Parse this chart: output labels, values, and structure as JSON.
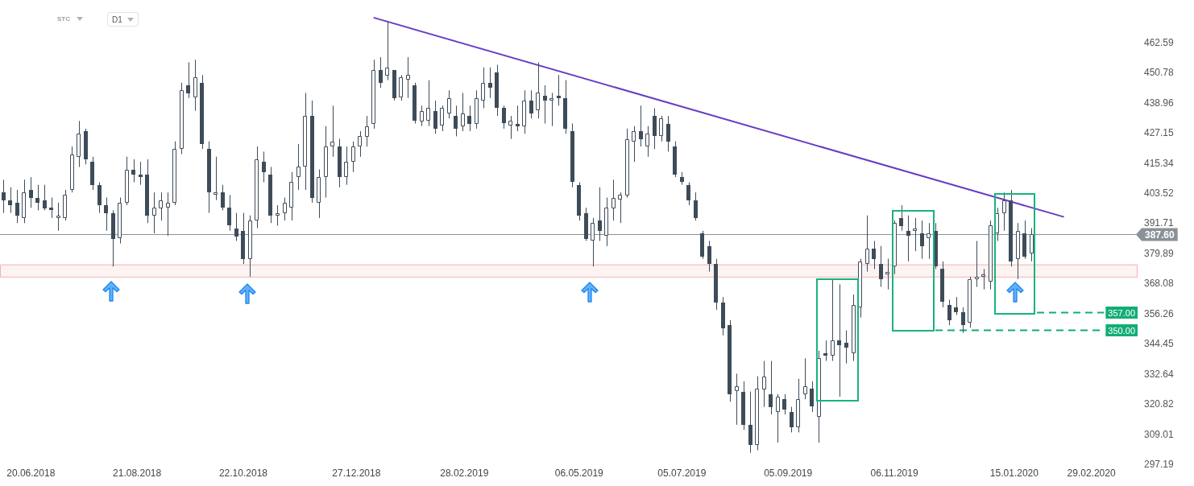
{
  "chart_data": {
    "type": "candlestick",
    "color": "#3e4c59",
    "x": [
      "2018-06-04",
      "2018-06-08",
      "2018-06-12",
      "2018-06-16",
      "2018-06-20",
      "2018-06-24",
      "2018-06-28",
      "2018-07-02",
      "2018-07-06",
      "2018-07-10",
      "2018-07-14",
      "2018-07-18",
      "2018-07-22",
      "2018-07-26",
      "2018-07-30",
      "2018-08-03",
      "2018-08-07",
      "2018-08-11",
      "2018-08-15",
      "2018-08-19",
      "2018-08-23",
      "2018-08-27",
      "2018-08-31",
      "2018-09-04",
      "2018-09-08",
      "2018-09-12",
      "2018-09-16",
      "2018-09-20",
      "2018-09-24",
      "2018-09-28",
      "2018-10-02",
      "2018-10-06",
      "2018-10-10",
      "2018-10-14",
      "2018-10-18",
      "2018-10-22",
      "2018-10-26",
      "2018-10-30",
      "2018-11-03",
      "2018-11-07",
      "2018-11-11",
      "2018-11-15",
      "2018-11-19",
      "2018-11-23",
      "2018-11-27",
      "2018-12-01",
      "2018-12-05",
      "2018-12-09",
      "2018-12-13",
      "2018-12-17",
      "2018-12-21",
      "2018-12-25",
      "2018-12-29",
      "2019-01-02",
      "2019-01-06",
      "2019-01-10",
      "2019-01-14",
      "2019-01-18",
      "2019-01-22",
      "2019-01-26",
      "2019-01-30",
      "2019-02-03",
      "2019-02-07",
      "2019-02-11",
      "2019-02-15",
      "2019-02-19",
      "2019-02-23",
      "2019-02-27",
      "2019-03-03",
      "2019-03-07",
      "2019-03-11",
      "2019-03-15",
      "2019-03-19",
      "2019-03-23",
      "2019-03-27",
      "2019-03-31",
      "2019-04-04",
      "2019-04-08",
      "2019-04-12",
      "2019-04-16",
      "2019-04-20",
      "2019-04-24",
      "2019-04-28",
      "2019-05-02",
      "2019-05-06",
      "2019-05-10",
      "2019-05-14",
      "2019-05-18",
      "2019-05-22",
      "2019-05-26",
      "2019-05-30",
      "2019-06-03",
      "2019-06-07",
      "2019-06-11",
      "2019-06-15",
      "2019-06-19",
      "2019-06-23",
      "2019-06-27",
      "2019-07-01",
      "2019-07-05",
      "2019-07-09",
      "2019-07-13",
      "2019-07-17",
      "2019-07-21",
      "2019-07-25",
      "2019-07-29",
      "2019-08-02",
      "2019-08-06",
      "2019-08-10",
      "2019-08-14",
      "2019-08-18",
      "2019-08-22",
      "2019-08-26",
      "2019-08-30",
      "2019-09-03",
      "2019-09-07",
      "2019-09-11",
      "2019-09-15",
      "2019-09-19",
      "2019-09-23",
      "2019-09-27",
      "2019-10-01",
      "2019-10-05",
      "2019-10-09",
      "2019-10-13",
      "2019-10-17",
      "2019-10-21",
      "2019-10-25",
      "2019-10-29",
      "2019-11-02",
      "2019-11-06",
      "2019-11-10",
      "2019-11-14",
      "2019-11-18",
      "2019-11-22",
      "2019-11-26",
      "2019-11-30",
      "2019-12-04",
      "2019-12-08",
      "2019-12-12",
      "2019-12-16",
      "2019-12-20",
      "2019-12-24",
      "2019-12-28",
      "2020-01-01",
      "2020-01-05",
      "2020-01-09",
      "2020-01-13",
      "2020-01-17",
      "2020-01-21",
      "2020-01-25"
    ],
    "ohlc": [
      [
        404,
        409,
        396,
        401
      ],
      [
        401,
        406,
        396,
        399
      ],
      [
        400,
        405,
        392,
        395
      ],
      [
        394,
        409,
        392,
        404
      ],
      [
        405,
        410,
        398,
        402
      ],
      [
        402,
        407,
        397,
        400
      ],
      [
        401,
        407,
        397,
        398
      ],
      [
        398,
        402,
        394,
        397
      ],
      [
        394,
        400,
        389,
        395
      ],
      [
        394,
        405,
        393,
        403
      ],
      [
        405,
        422,
        404,
        419
      ],
      [
        418,
        432,
        414,
        427
      ],
      [
        428,
        429,
        415,
        417
      ],
      [
        416,
        418,
        405,
        407
      ],
      [
        407,
        408,
        396,
        399
      ],
      [
        399,
        402,
        389,
        396
      ],
      [
        396,
        397,
        375,
        386
      ],
      [
        386,
        402,
        384,
        400
      ],
      [
        400,
        418,
        399,
        413
      ],
      [
        413,
        417,
        408,
        411
      ],
      [
        411,
        416,
        407,
        410
      ],
      [
        411,
        417,
        392,
        395
      ],
      [
        395,
        404,
        388,
        398
      ],
      [
        398,
        404,
        393,
        401
      ],
      [
        398,
        404,
        387,
        400
      ],
      [
        400,
        424,
        399,
        421
      ],
      [
        421,
        447,
        419,
        444
      ],
      [
        446,
        455,
        441,
        443
      ],
      [
        441,
        456,
        436,
        449
      ],
      [
        447,
        450,
        421,
        423
      ],
      [
        421,
        424,
        396,
        404
      ],
      [
        403,
        418,
        401,
        404
      ],
      [
        404,
        407,
        397,
        398
      ],
      [
        398,
        403,
        389,
        391
      ],
      [
        390,
        396,
        385,
        387
      ],
      [
        389,
        396,
        376,
        378
      ],
      [
        378,
        395,
        371,
        393
      ],
      [
        393,
        422,
        390,
        417
      ],
      [
        416,
        420,
        408,
        412
      ],
      [
        411,
        414,
        392,
        395
      ],
      [
        395,
        399,
        391,
        396
      ],
      [
        396,
        402,
        393,
        400
      ],
      [
        398,
        412,
        393,
        408
      ],
      [
        410,
        423,
        405,
        414
      ],
      [
        414,
        443,
        405,
        434
      ],
      [
        434,
        440,
        400,
        402
      ],
      [
        400,
        413,
        394,
        410
      ],
      [
        410,
        430,
        402,
        422
      ],
      [
        422,
        438,
        418,
        424
      ],
      [
        422,
        425,
        406,
        410
      ],
      [
        410,
        422,
        407,
        416
      ],
      [
        416,
        424,
        412,
        422
      ],
      [
        422,
        428,
        418,
        426
      ],
      [
        426,
        434,
        422,
        430
      ],
      [
        431,
        456,
        429,
        452
      ],
      [
        452,
        457,
        445,
        447
      ],
      [
        450,
        471,
        448,
        453
      ],
      [
        452,
        452,
        440,
        441
      ],
      [
        441,
        450,
        440,
        449
      ],
      [
        448,
        457,
        441,
        450
      ],
      [
        446,
        447,
        431,
        432
      ],
      [
        432,
        438,
        430,
        436
      ],
      [
        432,
        448,
        430,
        437
      ],
      [
        436,
        440,
        427,
        429
      ],
      [
        430,
        438,
        428,
        437
      ],
      [
        435,
        444,
        433,
        441
      ],
      [
        434,
        438,
        426,
        429
      ],
      [
        430,
        443,
        428,
        435
      ],
      [
        434,
        438,
        428,
        431
      ],
      [
        431,
        444,
        429,
        441
      ],
      [
        440,
        453,
        437,
        447
      ],
      [
        447,
        453,
        441,
        445
      ],
      [
        451,
        454,
        434,
        437
      ],
      [
        437,
        438,
        429,
        431
      ],
      [
        430,
        434,
        425,
        432
      ],
      [
        431,
        438,
        428,
        430
      ],
      [
        430,
        444,
        427,
        440
      ],
      [
        440,
        444,
        433,
        435
      ],
      [
        436,
        455,
        433,
        443
      ],
      [
        442,
        446,
        431,
        440
      ],
      [
        440,
        443,
        430,
        441
      ],
      [
        442,
        450,
        438,
        441
      ],
      [
        441,
        448,
        427,
        429
      ],
      [
        428,
        431,
        406,
        408
      ],
      [
        407,
        408,
        393,
        395
      ],
      [
        396,
        398,
        385,
        386
      ],
      [
        385,
        394,
        375,
        392
      ],
      [
        393,
        406,
        385,
        389
      ],
      [
        387,
        402,
        383,
        398
      ],
      [
        398,
        409,
        393,
        402
      ],
      [
        401,
        404,
        392,
        403
      ],
      [
        403,
        429,
        402,
        425
      ],
      [
        424,
        430,
        416,
        428
      ],
      [
        428,
        438,
        422,
        425
      ],
      [
        422,
        430,
        418,
        427
      ],
      [
        434,
        437,
        421,
        426
      ],
      [
        426,
        434,
        424,
        433
      ],
      [
        431,
        434,
        420,
        424
      ],
      [
        422,
        424,
        410,
        411
      ],
      [
        410,
        412,
        407,
        408
      ],
      [
        407,
        408,
        399,
        401
      ],
      [
        401,
        404,
        393,
        394
      ],
      [
        388,
        389,
        378,
        379
      ],
      [
        383,
        385,
        373,
        376
      ],
      [
        376,
        378,
        358,
        361
      ],
      [
        361,
        363,
        348,
        351
      ],
      [
        352,
        354,
        322,
        325
      ],
      [
        326,
        333,
        313,
        328
      ],
      [
        326,
        330,
        311,
        313
      ],
      [
        313,
        326,
        302,
        305
      ],
      [
        305,
        332,
        303,
        327
      ],
      [
        327,
        338,
        320,
        332
      ],
      [
        325,
        338,
        317,
        320
      ],
      [
        318,
        325,
        306,
        324
      ],
      [
        323,
        325,
        317,
        319
      ],
      [
        318,
        320,
        310,
        312
      ],
      [
        312,
        331,
        310,
        323
      ],
      [
        325,
        339,
        323,
        328
      ],
      [
        327,
        330,
        318,
        320
      ],
      [
        316,
        342,
        306,
        339
      ],
      [
        341,
        346,
        338,
        340
      ],
      [
        340,
        370,
        338,
        346
      ],
      [
        346,
        368,
        324,
        344
      ],
      [
        345,
        350,
        337,
        343
      ],
      [
        341,
        364,
        338,
        360
      ],
      [
        359,
        378,
        355,
        377
      ],
      [
        376,
        395,
        373,
        382
      ],
      [
        382,
        385,
        374,
        378
      ],
      [
        376,
        383,
        367,
        370
      ],
      [
        372,
        378,
        366,
        373
      ],
      [
        375,
        393,
        372,
        392
      ],
      [
        394,
        399,
        389,
        391
      ],
      [
        389,
        395,
        377,
        387
      ],
      [
        389,
        394,
        381,
        390
      ],
      [
        388,
        393,
        378,
        383
      ],
      [
        386,
        392,
        378,
        388
      ],
      [
        389,
        392,
        374,
        375
      ],
      [
        374,
        377,
        359,
        361
      ],
      [
        360,
        362,
        352,
        354
      ],
      [
        359,
        363,
        356,
        357
      ],
      [
        357,
        359,
        349,
        352
      ],
      [
        353,
        371,
        351,
        370
      ],
      [
        370,
        385,
        367,
        371
      ],
      [
        371,
        374,
        366,
        372
      ],
      [
        369,
        393,
        366,
        391
      ],
      [
        388,
        398,
        385,
        396
      ],
      [
        396,
        404,
        389,
        401
      ],
      [
        401,
        405,
        375,
        377
      ],
      [
        378,
        392,
        370,
        389
      ],
      [
        388,
        393,
        378,
        379
      ],
      [
        380,
        390,
        377,
        387.6
      ]
    ],
    "colors": [
      "#3e4c59",
      "#3e4c59",
      "#3e4c59",
      "#ffffff",
      "#3e4c59",
      "#3e4c59",
      "#3e4c59",
      "#3e4c59",
      "#ffffff",
      "#ffffff",
      "#ffffff",
      "#ffffff",
      "#3e4c59",
      "#3e4c59",
      "#3e4c59",
      "#3e4c59",
      "#3e4c59",
      "#ffffff",
      "#ffffff",
      "#3e4c59",
      "#3e4c59",
      "#3e4c59",
      "#ffffff",
      "#ffffff",
      "#ffffff",
      "#ffffff",
      "#ffffff",
      "#3e4c59",
      "#ffffff",
      "#3e4c59",
      "#3e4c59",
      "#ffffff",
      "#3e4c59",
      "#3e4c59",
      "#3e4c59",
      "#3e4c59",
      "#ffffff",
      "#ffffff",
      "#3e4c59",
      "#3e4c59",
      "#ffffff",
      "#ffffff",
      "#ffffff",
      "#ffffff",
      "#ffffff",
      "#3e4c59",
      "#ffffff",
      "#ffffff",
      "#ffffff",
      "#3e4c59",
      "#ffffff",
      "#ffffff",
      "#ffffff",
      "#ffffff",
      "#ffffff",
      "#3e4c59",
      "#ffffff",
      "#3e4c59",
      "#ffffff",
      "#ffffff",
      "#3e4c59",
      "#ffffff",
      "#ffffff",
      "#3e4c59",
      "#ffffff",
      "#ffffff",
      "#3e4c59",
      "#ffffff",
      "#3e4c59",
      "#ffffff",
      "#ffffff",
      "#3e4c59",
      "#3e4c59",
      "#3e4c59",
      "#ffffff",
      "#3e4c59",
      "#ffffff",
      "#3e4c59",
      "#ffffff",
      "#3e4c59",
      "#ffffff",
      "#3e4c59",
      "#3e4c59",
      "#3e4c59",
      "#3e4c59",
      "#3e4c59",
      "#ffffff",
      "#3e4c59",
      "#ffffff",
      "#ffffff",
      "#ffffff",
      "#ffffff",
      "#ffffff",
      "#3e4c59",
      "#ffffff",
      "#3e4c59",
      "#ffffff",
      "#3e4c59",
      "#3e4c59",
      "#3e4c59",
      "#3e4c59",
      "#3e4c59",
      "#3e4c59",
      "#3e4c59",
      "#3e4c59",
      "#3e4c59",
      "#3e4c59",
      "#ffffff",
      "#3e4c59",
      "#3e4c59",
      "#ffffff",
      "#ffffff",
      "#3e4c59",
      "#ffffff",
      "#3e4c59",
      "#3e4c59",
      "#ffffff",
      "#ffffff",
      "#3e4c59",
      "#ffffff",
      "#3e4c59",
      "#ffffff",
      "#3e4c59",
      "#3e4c59",
      "#ffffff",
      "#ffffff",
      "#ffffff",
      "#3e4c59",
      "#3e4c59",
      "#ffffff",
      "#ffffff",
      "#3e4c59",
      "#3e4c59",
      "#ffffff",
      "#3e4c59",
      "#ffffff",
      "#3e4c59",
      "#3e4c59",
      "#3e4c59",
      "#3e4c59",
      "#3e4c59",
      "#ffffff",
      "#ffffff",
      "#ffffff",
      "#ffffff",
      "#ffffff",
      "#ffffff",
      "#3e4c59",
      "#ffffff",
      "#3e4c59",
      "#ffffff"
    ],
    "series": [
      {
        "type": "line",
        "x": [
          "2019-01-06",
          "2020-02-13"
        ],
        "values": [
          472.5,
          394.4
        ],
        "color": "#6a3dc4"
      }
    ],
    "xlim": [
      "2018-06-02",
      "2020-03-27"
    ],
    "xticks": [
      {
        "value": "2018-06-20",
        "label": "20.06.2018"
      },
      {
        "value": "2018-08-21",
        "label": "21.08.2018"
      },
      {
        "value": "2018-10-22",
        "label": "22.10.2018"
      },
      {
        "value": "2018-12-27",
        "label": "27.12.2018"
      },
      {
        "value": "2019-02-28",
        "label": "28.02.2019"
      },
      {
        "value": "2019-05-06",
        "label": "06.05.2019"
      },
      {
        "value": "2019-07-05",
        "label": "05.07.2019"
      },
      {
        "value": "2019-09-05",
        "label": "05.09.2019"
      },
      {
        "value": "2019-11-06",
        "label": "06.11.2019"
      },
      {
        "value": "2020-01-15",
        "label": "15.01.2020"
      },
      {
        "value": "2020-02-29",
        "label": "29.02.2020"
      }
    ],
    "ylim": [
      297.19,
      479.4
    ],
    "yticks": [
      297.19,
      309.01,
      320.82,
      332.64,
      344.45,
      356.26,
      368.08,
      379.89,
      391.71,
      403.52,
      415.34,
      427.15,
      438.96,
      450.78,
      462.59
    ],
    "ref_lines": [
      {
        "axis": "y",
        "value": 387.6,
        "label": "387.60",
        "color": "#8a9299"
      },
      {
        "axis": "y",
        "value": 357,
        "label": "357.00",
        "color": "#12ad76",
        "line_style": "dashed"
      },
      {
        "axis": "y",
        "value": 350,
        "label": "350.00",
        "color": "#12ad76",
        "line_style": "dashed"
      }
    ],
    "bands": [
      {
        "axis": "y",
        "from": 370.7,
        "to": 375.8,
        "color": "#f2b3b3"
      }
    ],
    "annotations": [
      "STC",
      "D1"
    ]
  }
}
